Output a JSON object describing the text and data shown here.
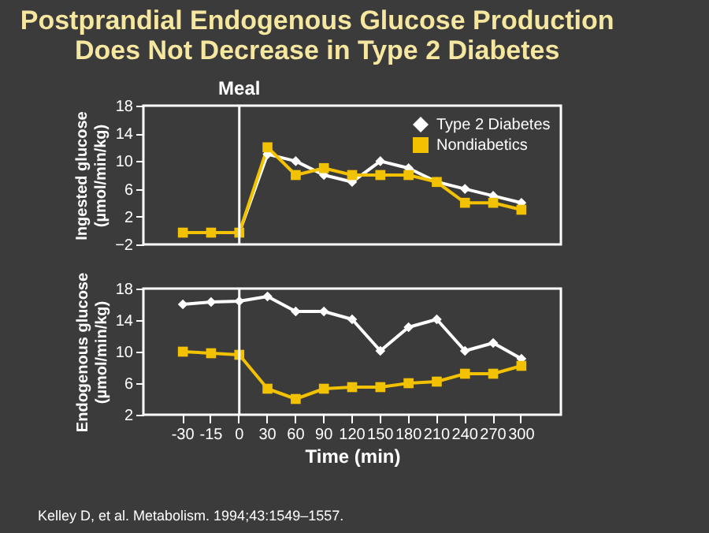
{
  "chart_data": [
    {
      "type": "line",
      "title": "Postprandial Endogenous Glucose Production\nDoes Not Decrease in Type 2 Diabetes",
      "ylabel": "Ingested glucose\n(µmol/min/kg)",
      "categories": [
        "-30",
        "-15",
        "0",
        "30",
        "60",
        "90",
        "120",
        "150",
        "180",
        "210",
        "240",
        "270",
        "300"
      ],
      "ylim": [
        -2,
        18
      ],
      "yticks": [
        -2,
        2,
        6,
        10,
        14,
        18
      ],
      "grid": false,
      "legend": "top right",
      "tick_labels": "y",
      "ref_lines": [
        {
          "axis": "x",
          "value": "0",
          "label": "Meal",
          "color": "#ffffff"
        }
      ],
      "series": [
        {
          "name": "Type 2 Diabetes",
          "color": "#ffffff",
          "marker": "diamond",
          "values": [
            -0.3,
            -0.3,
            -0.3,
            11,
            10,
            8,
            7,
            10,
            9,
            7,
            6,
            5,
            4
          ]
        },
        {
          "name": "Nondiabetics",
          "color": "#f2c200",
          "marker": "square",
          "values": [
            -0.3,
            -0.3,
            -0.3,
            12,
            8,
            9,
            8,
            8,
            8,
            7,
            4,
            4,
            3
          ]
        }
      ]
    },
    {
      "type": "line",
      "xlabel": "Time (min)",
      "ylabel": "Endogenous glucose\n(µmol/min/kg)",
      "categories": [
        "-30",
        "-15",
        "0",
        "30",
        "60",
        "90",
        "120",
        "150",
        "180",
        "210",
        "240",
        "270",
        "300"
      ],
      "ylim": [
        2,
        18
      ],
      "yticks": [
        2,
        6,
        10,
        14,
        18
      ],
      "grid": false,
      "legend": false,
      "ref_lines": [
        {
          "axis": "x",
          "value": "0",
          "label": null,
          "color": "#ffffff"
        }
      ],
      "annotations": [
        "Kelley D, et al. Metabolism. 1994;43:1549–1557."
      ],
      "series": [
        {
          "color": "#ffffff",
          "marker": "diamond",
          "values": [
            16,
            16.3,
            16.4,
            17,
            15.1,
            15.1,
            14.1,
            10.1,
            13.1,
            14.1,
            10.1,
            11.1,
            9.1
          ]
        },
        {
          "color": "#f2c200",
          "marker": "square",
          "values": [
            10,
            9.8,
            9.6,
            5.3,
            4,
            5.3,
            5.5,
            5.5,
            6,
            6.2,
            7.2,
            7.2,
            8.2
          ]
        }
      ]
    }
  ]
}
